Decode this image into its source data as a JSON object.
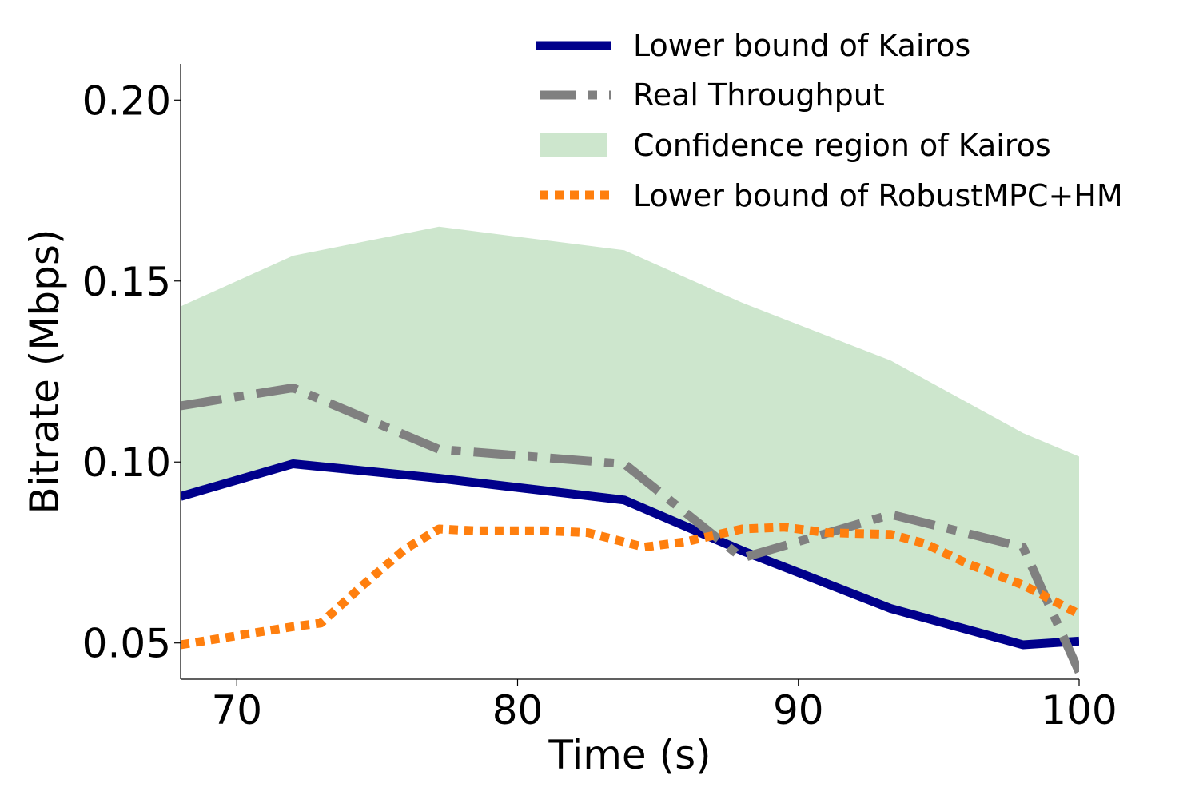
{
  "chart_data": {
    "type": "line",
    "title": "",
    "xlabel": "Time (s)",
    "ylabel": "Bitrate (Mbps)",
    "xlim": [
      68,
      100
    ],
    "ylim": [
      0.04,
      0.21
    ],
    "xticks": [
      70,
      80,
      90,
      100
    ],
    "xtick_labels": [
      "70",
      "80",
      "90",
      "100"
    ],
    "yticks": [
      0.05,
      0.1,
      0.15,
      0.2
    ],
    "ytick_labels": [
      "0.05",
      "0.10",
      "0.15",
      "0.20"
    ],
    "grid": false,
    "legend_position": "top-right",
    "confidence_region": {
      "name": "Confidence region of Kairos",
      "color": "#cde6cd",
      "x": [
        68,
        72,
        77.2,
        83.8,
        88,
        93.3,
        98,
        100
      ],
      "lower": [
        0.0905,
        0.0995,
        0.0955,
        0.0895,
        0.0755,
        0.0595,
        0.0495,
        0.0505
      ],
      "upper": [
        0.143,
        0.157,
        0.165,
        0.1585,
        0.144,
        0.128,
        0.108,
        0.1015
      ]
    },
    "series": [
      {
        "name": "Lower bound of Kairos",
        "color": "#00008b",
        "style": "solid",
        "x": [
          68,
          72,
          77.2,
          83.8,
          88,
          93.3,
          98,
          100
        ],
        "y": [
          0.0905,
          0.0995,
          0.0955,
          0.0895,
          0.0755,
          0.0595,
          0.0495,
          0.0505
        ]
      },
      {
        "name": "Real Throughput",
        "color": "#808080",
        "style": "dashdot",
        "x": [
          68,
          72,
          77.2,
          83.8,
          88,
          93.3,
          98,
          100
        ],
        "y": [
          0.1155,
          0.1205,
          0.1035,
          0.0995,
          0.0735,
          0.0855,
          0.0765,
          0.042
        ]
      },
      {
        "name": "Lower bound of RobustMPC+HM",
        "color": "#ff7f0e",
        "style": "dotted",
        "x": [
          68,
          72,
          73,
          74.5,
          76,
          77.2,
          78.5,
          81,
          82.5,
          84.5,
          86,
          88,
          89.5,
          91,
          93.3,
          94.5,
          96,
          98,
          100
        ],
        "y": [
          0.0495,
          0.0545,
          0.0555,
          0.066,
          0.076,
          0.0815,
          0.081,
          0.081,
          0.0805,
          0.0765,
          0.078,
          0.0815,
          0.082,
          0.0805,
          0.08,
          0.0775,
          0.072,
          0.066,
          0.058
        ]
      }
    ]
  }
}
